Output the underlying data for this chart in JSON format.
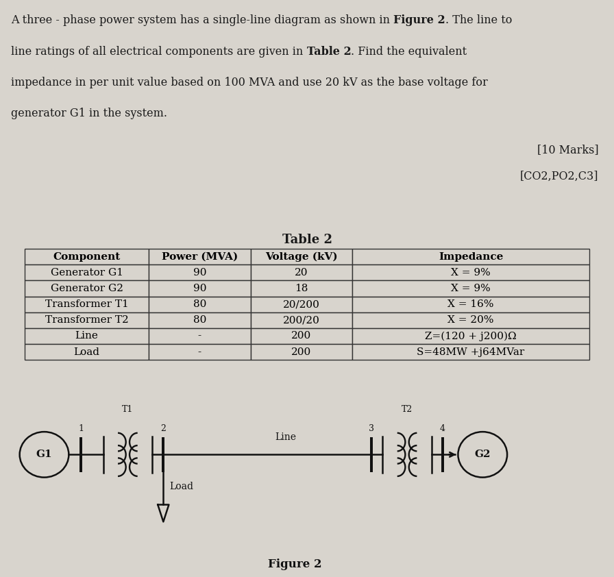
{
  "bg_color": "#d8d4cd",
  "text_color": "#1a1a1a",
  "marks_line": "[10 Marks]",
  "co_line": "[CO2,PO2,C3]",
  "table_title": "Table 2",
  "table_headers": [
    "Component",
    "Power (MVA)",
    "Voltage (kV)",
    "Impedance"
  ],
  "table_rows": [
    [
      "Generator G1",
      "90",
      "20",
      "X = 9%"
    ],
    [
      "Generator G2",
      "90",
      "18",
      "X = 9%"
    ],
    [
      "Transformer T1",
      "80",
      "20/200",
      "X = 16%"
    ],
    [
      "Transformer T2",
      "80",
      "200/20",
      "X = 20%"
    ],
    [
      "Line",
      "-",
      "200",
      "Z=(120 + j200)Ω"
    ],
    [
      "Load",
      "-",
      "200",
      "S=48MW +j64MVar"
    ]
  ],
  "figure_caption": "Figure 2",
  "para_parts": [
    [
      [
        "A three - phase power system has a single-line diagram as shown in ",
        false
      ],
      [
        "Figure 2",
        true
      ],
      [
        ". The line to",
        false
      ]
    ],
    [
      [
        "line ratings of all electrical components are given in ",
        false
      ],
      [
        "Table 2",
        true
      ],
      [
        ". Find the equivalent",
        false
      ]
    ],
    [
      [
        "impedance in per unit value based on 100 MVA and use 20 kV as the base voltage for",
        false
      ]
    ],
    [
      [
        "generator G1 in the system.",
        false
      ]
    ]
  ]
}
